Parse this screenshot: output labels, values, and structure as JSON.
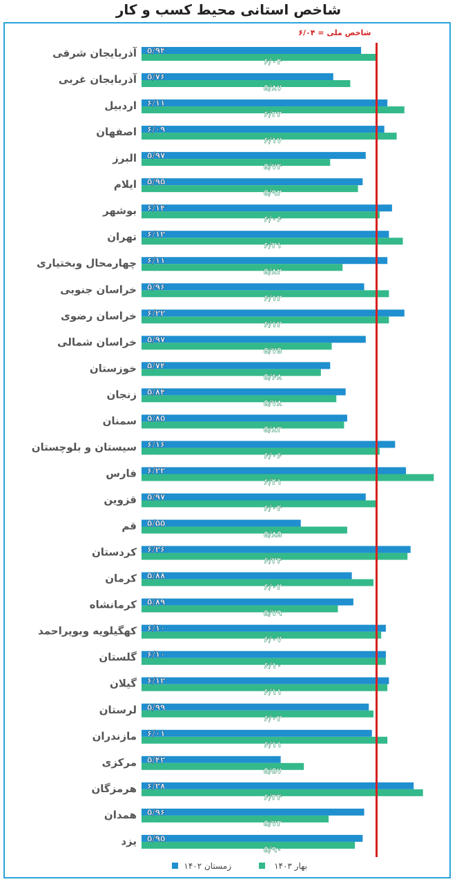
{
  "chart_data": {
    "type": "bar",
    "orientation": "horizontal",
    "title": "شاخص استانی محیط کسب و کار",
    "reference_line": {
      "label": "شاخص ملی = ۶/۰۴",
      "value": 6.04,
      "color": "#d62020"
    },
    "xlim": [
      4.52,
      6.45
    ],
    "grid": false,
    "legend_position": "bottom",
    "categories": [
      "آذربایجان شرقی",
      "آذربایجان غربی",
      "اردبیل",
      "اصفهان",
      "البرز",
      "ایلام",
      "بوشهر",
      "تهران",
      "چهارمحال وبختیاری",
      "خراسان جنوبی",
      "خراسان رضوی",
      "خراسان شمالی",
      "خوزستان",
      "زنجان",
      "سمنان",
      "سیستان و بلوچستان",
      "فارس",
      "قزوین",
      "قم",
      "کردستان",
      "کرمان",
      "کرمانشاه",
      "کهگیلویه وبویراحمد",
      "گلستان",
      "گیلان",
      "لرستان",
      "مازندران",
      "مرکزی",
      "هرمزگان",
      "همدان",
      "یزد"
    ],
    "series": [
      {
        "name": "زمستان ۱۴۰۲",
        "color": "#1f8fcf",
        "values": [
          5.94,
          5.76,
          6.11,
          6.09,
          5.97,
          5.95,
          6.14,
          6.12,
          6.11,
          5.96,
          6.22,
          5.97,
          5.74,
          5.84,
          5.85,
          6.16,
          6.23,
          5.97,
          5.55,
          6.26,
          5.88,
          5.89,
          6.1,
          6.1,
          6.12,
          5.99,
          6.01,
          5.42,
          6.28,
          5.96,
          5.95
        ]
      },
      {
        "name": "بهار ۱۴۰۳",
        "color": "#34b98a",
        "values": [
          6.04,
          5.87,
          6.22,
          6.17,
          5.74,
          5.92,
          6.06,
          6.21,
          5.82,
          6.12,
          6.12,
          5.75,
          5.68,
          5.78,
          5.83,
          6.06,
          6.41,
          6.04,
          5.85,
          6.24,
          6.02,
          5.79,
          6.07,
          6.1,
          6.11,
          6.02,
          6.11,
          5.57,
          6.34,
          5.73,
          5.9
        ]
      }
    ]
  }
}
